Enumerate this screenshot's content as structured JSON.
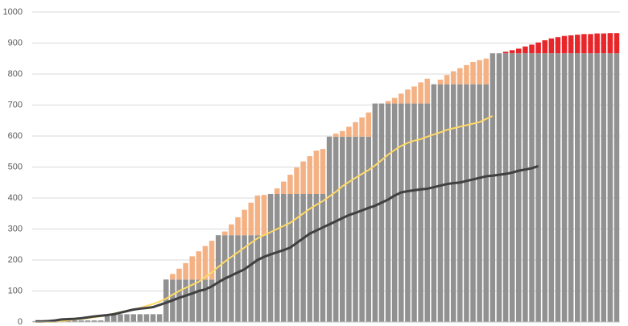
{
  "chart_data": {
    "type": "bar",
    "stacked": true,
    "categories": [
      null,
      null,
      null,
      null,
      null,
      null,
      null,
      null,
      null,
      null,
      null,
      null,
      null,
      null,
      null,
      null,
      null,
      null,
      null,
      null,
      null,
      null,
      null,
      null,
      null,
      null,
      null,
      null,
      null,
      null,
      null,
      null,
      null,
      null,
      null,
      null,
      null,
      null,
      null,
      null,
      null,
      null,
      null,
      null,
      null,
      null,
      null,
      null,
      null,
      null,
      null,
      null,
      null,
      null,
      null,
      null,
      null,
      null,
      null,
      null,
      null,
      null,
      null,
      null,
      null,
      null,
      null,
      null,
      null,
      null,
      null,
      null,
      null,
      null,
      null,
      null,
      null,
      null,
      null,
      null,
      null,
      null,
      null,
      null,
      null,
      null,
      null,
      null,
      null,
      null
    ],
    "ylim": [
      0,
      1000
    ],
    "yticks": [
      0,
      100,
      200,
      300,
      400,
      500,
      600,
      700,
      800,
      900,
      1000
    ],
    "grid": true,
    "series": [
      {
        "type": "bar",
        "color": "#919191",
        "values": [
          3,
          3,
          3,
          3,
          3,
          5,
          5,
          5,
          5,
          5,
          5,
          18,
          25,
          25,
          25,
          25,
          25,
          25,
          25,
          25,
          137,
          137,
          137,
          137,
          137,
          137,
          137,
          137,
          280,
          280,
          280,
          280,
          280,
          280,
          280,
          280,
          413,
          413,
          413,
          413,
          413,
          413,
          413,
          413,
          413,
          598,
          598,
          598,
          598,
          598,
          598,
          598,
          705,
          705,
          705,
          705,
          705,
          705,
          705,
          705,
          705,
          767,
          767,
          767,
          767,
          767,
          767,
          767,
          767,
          767,
          867,
          867,
          867,
          867,
          867,
          867,
          867,
          867,
          867,
          867,
          867,
          867,
          867,
          867,
          867,
          867,
          867,
          867,
          867,
          867
        ]
      },
      {
        "type": "bar",
        "color": "#f4b183",
        "values": [
          null,
          null,
          null,
          null,
          null,
          null,
          null,
          null,
          null,
          null,
          null,
          null,
          null,
          null,
          null,
          null,
          null,
          null,
          null,
          null,
          0,
          18,
          35,
          53,
          75,
          91,
          108,
          125,
          0,
          12,
          35,
          58,
          82,
          105,
          128,
          130,
          0,
          18,
          40,
          62,
          85,
          105,
          122,
          140,
          145,
          0,
          10,
          18,
          32,
          47,
          62,
          78,
          0,
          0,
          8,
          18,
          32,
          45,
          55,
          68,
          80,
          0,
          15,
          30,
          42,
          52,
          62,
          72,
          78,
          83,
          null,
          null,
          null,
          null,
          null,
          null,
          null,
          null,
          null,
          null,
          null,
          null,
          null,
          null,
          null,
          null,
          null,
          null,
          null,
          null
        ]
      },
      {
        "type": "bar",
        "color": "#e8262a",
        "values": [
          null,
          null,
          null,
          null,
          null,
          null,
          null,
          null,
          null,
          null,
          null,
          null,
          null,
          null,
          null,
          null,
          null,
          null,
          null,
          null,
          null,
          null,
          null,
          null,
          null,
          null,
          null,
          null,
          null,
          null,
          null,
          null,
          null,
          null,
          null,
          null,
          null,
          null,
          null,
          null,
          null,
          null,
          null,
          null,
          null,
          null,
          null,
          null,
          null,
          null,
          null,
          null,
          null,
          null,
          null,
          null,
          null,
          null,
          null,
          null,
          null,
          null,
          null,
          null,
          null,
          null,
          null,
          null,
          null,
          null,
          0,
          0,
          5,
          10,
          15,
          22,
          28,
          35,
          42,
          48,
          52,
          56,
          58,
          60,
          62,
          62,
          64,
          64,
          65,
          65
        ]
      },
      {
        "type": "line",
        "color": "#ffd966",
        "values": [
          0,
          0,
          0,
          0,
          2,
          5,
          8,
          10,
          12,
          15,
          18,
          22,
          27,
          32,
          36,
          40,
          45,
          52,
          58,
          66,
          75,
          88,
          100,
          110,
          120,
          130,
          145,
          160,
          178,
          195,
          210,
          225,
          240,
          255,
          270,
          280,
          290,
          300,
          310,
          320,
          335,
          350,
          365,
          378,
          390,
          405,
          420,
          438,
          452,
          465,
          478,
          490,
          505,
          522,
          540,
          555,
          568,
          578,
          585,
          590,
          598,
          605,
          612,
          620,
          625,
          630,
          635,
          640,
          645,
          655,
          665,
          null,
          null,
          null,
          null,
          null,
          null,
          null,
          null,
          null,
          null,
          null,
          null,
          null,
          null,
          null,
          null,
          null,
          null,
          null
        ]
      },
      {
        "type": "line",
        "color": "#404040",
        "values": [
          2,
          2,
          3,
          5,
          8,
          9,
          10,
          12,
          15,
          18,
          20,
          22,
          25,
          30,
          35,
          40,
          43,
          45,
          48,
          55,
          62,
          70,
          78,
          85,
          92,
          100,
          105,
          115,
          128,
          140,
          150,
          160,
          170,
          185,
          200,
          210,
          218,
          225,
          232,
          240,
          255,
          270,
          285,
          295,
          305,
          315,
          325,
          335,
          345,
          352,
          360,
          368,
          375,
          385,
          395,
          408,
          418,
          422,
          425,
          428,
          430,
          435,
          440,
          445,
          448,
          450,
          455,
          460,
          465,
          470,
          472,
          475,
          478,
          482,
          488,
          492,
          496,
          503,
          null,
          null,
          null,
          null,
          null,
          null,
          null,
          null,
          null,
          null,
          null,
          null
        ]
      }
    ]
  }
}
